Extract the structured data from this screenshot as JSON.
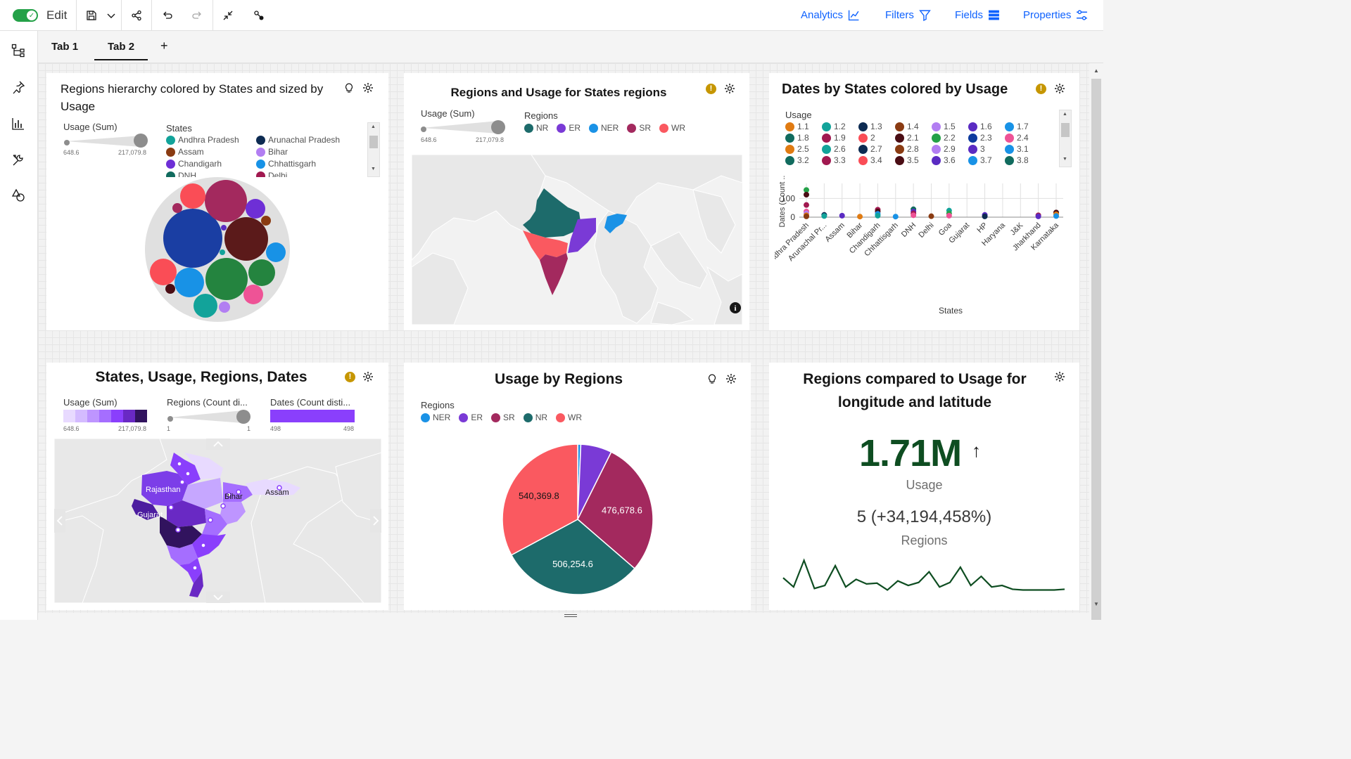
{
  "toolbar": {
    "edit_label": "Edit",
    "analytics": "Analytics",
    "filters": "Filters",
    "fields": "Fields",
    "properties": "Properties"
  },
  "tabs": [
    {
      "label": "Tab 1"
    },
    {
      "label": "Tab 2"
    }
  ],
  "tab_add": "+",
  "panels": {
    "p1": {
      "title": "Regions hierarchy colored by States and sized by Usage",
      "size_label": "Usage (Sum)",
      "size_min": "648.6",
      "size_max": "217,079.8",
      "legend_title": "States",
      "legend": [
        {
          "label": "Andhra Pradesh",
          "color": "#12a39a"
        },
        {
          "label": "Arunachal Pradesh",
          "color": "#0d2b52"
        },
        {
          "label": "Assam",
          "color": "#8a3b12"
        },
        {
          "label": "Bihar",
          "color": "#b27ef2"
        },
        {
          "label": "Chandigarh",
          "color": "#6e2fd6"
        },
        {
          "label": "Chhattisgarh",
          "color": "#1892e6"
        },
        {
          "label": "DNH",
          "color": "#116b5e"
        },
        {
          "label": "Delhi",
          "color": "#a11950"
        }
      ]
    },
    "p2": {
      "title": "Regions and Usage for States regions",
      "size_label": "Usage (Sum)",
      "size_min": "648.6",
      "size_max": "217,079.8",
      "legend_title": "Regions",
      "legend": [
        {
          "label": "NR",
          "color": "#1d6b6b"
        },
        {
          "label": "ER",
          "color": "#7a3ad6"
        },
        {
          "label": "NER",
          "color": "#1a92e6"
        },
        {
          "label": "SR",
          "color": "#a3295e"
        },
        {
          "label": "WR",
          "color": "#fa5960"
        }
      ]
    },
    "p3": {
      "title": "Dates by States colored by Usage",
      "legend_title": "Usage",
      "legend": [
        {
          "label": "1.1",
          "color": "#e07b12"
        },
        {
          "label": "1.2",
          "color": "#12a39a"
        },
        {
          "label": "1.3",
          "color": "#0d2b52"
        },
        {
          "label": "1.4",
          "color": "#8a3b12"
        },
        {
          "label": "1.5",
          "color": "#b27ef2"
        },
        {
          "label": "1.6",
          "color": "#5a2bc2"
        },
        {
          "label": "1.7",
          "color": "#1892e6"
        },
        {
          "label": "1.8",
          "color": "#116b5e"
        },
        {
          "label": "1.9",
          "color": "#a11950"
        },
        {
          "label": "2",
          "color": "#fa4d56"
        },
        {
          "label": "2.1",
          "color": "#4a0d14"
        },
        {
          "label": "2.2",
          "color": "#24a148"
        },
        {
          "label": "2.3",
          "color": "#0d3a9e"
        },
        {
          "label": "2.4",
          "color": "#ee5396"
        },
        {
          "label": "2.5",
          "color": "#e07b12"
        },
        {
          "label": "2.6",
          "color": "#12a39a"
        },
        {
          "label": "2.7",
          "color": "#0d2b52"
        },
        {
          "label": "2.8",
          "color": "#8a3b12"
        },
        {
          "label": "2.9",
          "color": "#b27ef2"
        },
        {
          "label": "3",
          "color": "#5a2bc2"
        },
        {
          "label": "3.1",
          "color": "#1892e6"
        },
        {
          "label": "3.2",
          "color": "#116b5e"
        },
        {
          "label": "3.3",
          "color": "#a11950"
        },
        {
          "label": "3.4",
          "color": "#fa4d56"
        },
        {
          "label": "3.5",
          "color": "#4a0d14"
        },
        {
          "label": "3.6",
          "color": "#5a2bc2"
        },
        {
          "label": "3.7",
          "color": "#1892e6"
        },
        {
          "label": "3.8",
          "color": "#116b5e"
        }
      ],
      "ylabel": "Dates (Count ...",
      "xlabel": "States",
      "yticks": [
        "100",
        "0"
      ]
    },
    "p4": {
      "title": "States, Usage, Regions, Dates",
      "legend1_label": "Usage (Sum)",
      "legend1_min": "648.6",
      "legend1_max": "217,079.8",
      "legend2_label": "Regions (Count di...",
      "legend2_min": "1",
      "legend2_max": "1",
      "legend3_label": "Dates (Count disti...",
      "legend3_min": "498",
      "legend3_max": "498",
      "map_labels": [
        "Rajasthan",
        "Gujarat",
        "Bihar",
        "Assam"
      ]
    },
    "p5": {
      "title": "Usage by Regions",
      "legend_title": "Regions",
      "legend": [
        {
          "label": "NER",
          "color": "#1a92e6"
        },
        {
          "label": "ER",
          "color": "#7a3ad6"
        },
        {
          "label": "SR",
          "color": "#a3295e"
        },
        {
          "label": "NR",
          "color": "#1d6b6b"
        },
        {
          "label": "WR",
          "color": "#fa5960"
        }
      ]
    },
    "p6": {
      "title": "Regions compared to Usage for longitude and latitude",
      "kpi_value": "1.71M",
      "kpi_arrow": "↑",
      "kpi_label": "Usage",
      "sub_value": "5 (+34,194,458%)",
      "sub_label": "Regions",
      "sparkline": [
        28,
        40,
        5,
        42,
        38,
        12,
        40,
        30,
        36,
        35,
        44,
        32,
        38,
        34,
        20,
        40,
        34,
        14,
        38,
        26,
        40,
        38,
        43,
        44,
        44,
        44,
        44,
        43
      ]
    }
  },
  "chart_data": [
    {
      "type": "pie",
      "title": "Usage by Regions",
      "categories": [
        "NER",
        "ER",
        "SR",
        "NR",
        "WR"
      ],
      "values": [
        11000,
        110000,
        476678.6,
        506254.6,
        540369.8
      ],
      "data_labels": [
        "",
        "",
        "476,678.6",
        "506,254.6",
        "540,369.8"
      ],
      "colors": [
        "#1a92e6",
        "#7a3ad6",
        "#a3295e",
        "#1d6b6b",
        "#fa5960"
      ]
    },
    {
      "type": "scatter",
      "title": "Dates by States colored by Usage",
      "xlabel": "States",
      "ylabel": "Dates (Count ...",
      "ylim": [
        0,
        180
      ],
      "categories": [
        "Andhra Pradesh",
        "Arunachal Pr...",
        "Assam",
        "Bihar",
        "Chandigarh",
        "Chhattisgarh",
        "DNH",
        "Delhi",
        "Goa",
        "Gujarat",
        "HP",
        "Haryana",
        "J&K",
        "Jharkhand",
        "Karnataka"
      ],
      "points": [
        {
          "x": "Andhra Pradesh",
          "y": 145,
          "color": "#24a148"
        },
        {
          "x": "Andhra Pradesh",
          "y": 120,
          "color": "#4a0d14"
        },
        {
          "x": "Andhra Pradesh",
          "y": 65,
          "color": "#a11950"
        },
        {
          "x": "Andhra Pradesh",
          "y": 30,
          "color": "#ee5396"
        },
        {
          "x": "Andhra Pradesh",
          "y": 20,
          "color": "#b27ef2"
        },
        {
          "x": "Andhra Pradesh",
          "y": 10,
          "color": "#e07b12"
        },
        {
          "x": "Andhra Pradesh",
          "y": 4,
          "color": "#8a3b12"
        },
        {
          "x": "Arunachal Pr...",
          "y": 12,
          "color": "#0d2b52"
        },
        {
          "x": "Arunachal Pr...",
          "y": 6,
          "color": "#12a39a"
        },
        {
          "x": "Assam",
          "y": 8,
          "color": "#5a2bc2"
        },
        {
          "x": "Bihar",
          "y": 3,
          "color": "#e07b12"
        },
        {
          "x": "Chandigarh",
          "y": 40,
          "color": "#a11950"
        },
        {
          "x": "Chandigarh",
          "y": 30,
          "color": "#4a0d14"
        },
        {
          "x": "Chandigarh",
          "y": 18,
          "color": "#1892e6"
        },
        {
          "x": "Chandigarh",
          "y": 8,
          "color": "#12a39a"
        },
        {
          "x": "Chhattisgarh",
          "y": 3,
          "color": "#1892e6"
        },
        {
          "x": "DNH",
          "y": 42,
          "color": "#116b5e"
        },
        {
          "x": "DNH",
          "y": 30,
          "color": "#5a2bc2"
        },
        {
          "x": "DNH",
          "y": 20,
          "color": "#a11950"
        },
        {
          "x": "DNH",
          "y": 10,
          "color": "#ee5396"
        },
        {
          "x": "Delhi",
          "y": 5,
          "color": "#8a3b12"
        },
        {
          "x": "Goa",
          "y": 35,
          "color": "#12a39a"
        },
        {
          "x": "Goa",
          "y": 20,
          "color": "#24a148"
        },
        {
          "x": "Goa",
          "y": 8,
          "color": "#ee5396"
        },
        {
          "x": "HP",
          "y": 12,
          "color": "#5a2bc2"
        },
        {
          "x": "HP",
          "y": 4,
          "color": "#0d2b52"
        },
        {
          "x": "Jharkhand",
          "y": 10,
          "color": "#a11950"
        },
        {
          "x": "Jharkhand",
          "y": 4,
          "color": "#5a2bc2"
        },
        {
          "x": "Karnataka",
          "y": 25,
          "color": "#4a0d14"
        },
        {
          "x": "Karnataka",
          "y": 15,
          "color": "#e07b12"
        },
        {
          "x": "Karnataka",
          "y": 6,
          "color": "#1892e6"
        }
      ]
    }
  ]
}
